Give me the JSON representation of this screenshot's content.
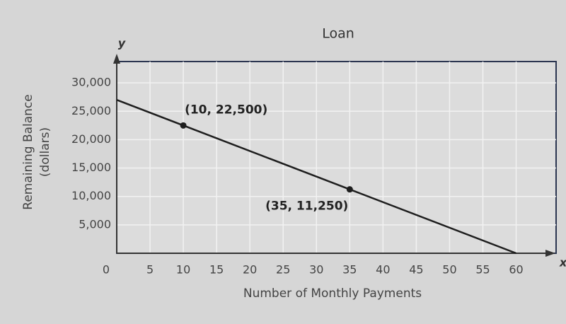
{
  "chart_data": {
    "type": "line",
    "title": "Loan",
    "x_label": "Number of Monthly Payments",
    "y_label": [
      "Remaining Balance",
      "(dollars)"
    ],
    "x_axis_letter": "x",
    "y_axis_letter": "y",
    "x": [
      0,
      10,
      35,
      60
    ],
    "series": [
      {
        "color": "#1e1e1e",
        "values": [
          27000,
          22500,
          11250,
          0
        ]
      }
    ],
    "annotations": [
      {
        "text": "(10, 22,500)",
        "x": 10,
        "y": 22500
      },
      {
        "text": "(35, 11,250)",
        "x": 35,
        "y": 11250
      }
    ],
    "xlim": [
      0,
      66
    ],
    "ylim": [
      0,
      33750
    ],
    "xticks": [
      0,
      5,
      10,
      15,
      20,
      25,
      30,
      35,
      40,
      45,
      50,
      55,
      60
    ],
    "yticks": [
      {
        "value": 5000,
        "label": "5,000"
      },
      {
        "value": 10000,
        "label": "10,000"
      },
      {
        "value": 15000,
        "label": "15,000"
      },
      {
        "value": 20000,
        "label": "20,000"
      },
      {
        "value": 25000,
        "label": "25,000"
      },
      {
        "value": 30000,
        "label": "30,000"
      }
    ],
    "grid": true
  }
}
